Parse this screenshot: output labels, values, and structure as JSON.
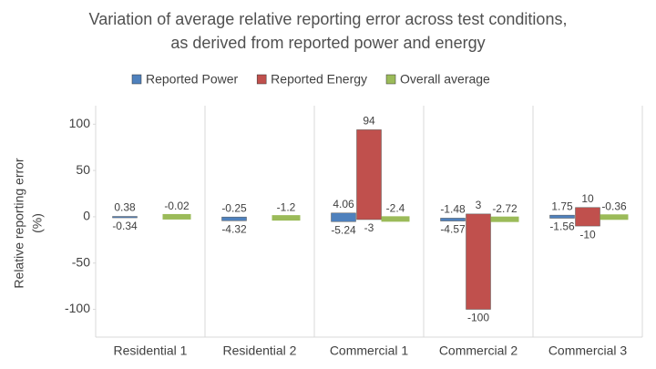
{
  "chart_data": {
    "type": "range-bar",
    "title": [
      "Variation of average relative reporting error across test conditions,",
      "as derived from reported power and energy"
    ],
    "ylabel": [
      "Relative reporting error",
      "(%)"
    ],
    "categories": [
      "Residential 1",
      "Residential 2",
      "Commercial 1",
      "Commercial 2",
      "Commercial 3"
    ],
    "series": [
      {
        "name": "Reported Power",
        "color": "#4f81bd",
        "high": [
          0.38,
          -0.25,
          4.06,
          -1.48,
          1.75
        ],
        "low": [
          -0.34,
          -4.32,
          -5.24,
          -4.57,
          -1.56
        ]
      },
      {
        "name": "Reported Energy",
        "color": "#c0504d",
        "high": [
          null,
          null,
          94,
          3,
          10
        ],
        "low": [
          null,
          null,
          -3,
          -100,
          -10
        ]
      },
      {
        "name": "Overall average",
        "color": "#9bbb59",
        "values": [
          -0.02,
          -1.2,
          -2.4,
          -2.72,
          -0.36
        ]
      }
    ],
    "ylim": [
      -130,
      120
    ],
    "yticks": [
      -100,
      -50,
      0,
      50,
      100
    ],
    "legend": "top"
  }
}
